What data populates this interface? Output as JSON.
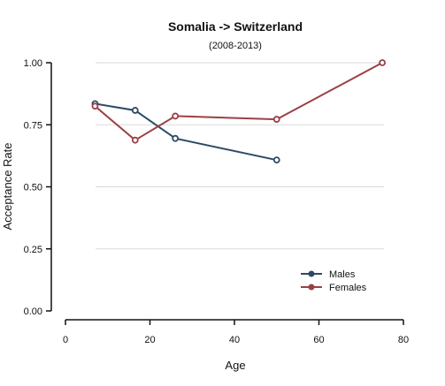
{
  "chart_data": {
    "type": "line",
    "title": "Somalia  -> Switzerland",
    "subtitle": "(2008-2013)",
    "xlabel": "Age",
    "ylabel": "Acceptance Rate",
    "xlim": [
      0,
      80
    ],
    "ylim": [
      0,
      1
    ],
    "x_ticks": [
      0,
      20,
      40,
      60,
      80
    ],
    "x_tick_labels": [
      "0",
      "20",
      "40",
      "60",
      "80"
    ],
    "y_ticks": [
      0,
      0.25,
      0.5,
      0.75,
      1
    ],
    "y_tick_labels": [
      "0.00",
      "0.25",
      "0.50",
      "0.75",
      "1.00"
    ],
    "grid": "horizontal",
    "legend_position": "bottom-right",
    "series": [
      {
        "name": "Males",
        "color": "#2e4a66",
        "points": [
          {
            "x": 7,
            "y": 0.835
          },
          {
            "x": 16.5,
            "y": 0.808
          },
          {
            "x": 26,
            "y": 0.695
          },
          {
            "x": 50,
            "y": 0.608
          }
        ]
      },
      {
        "name": "Females",
        "color": "#9b4045",
        "points": [
          {
            "x": 7,
            "y": 0.825
          },
          {
            "x": 16.5,
            "y": 0.688
          },
          {
            "x": 26,
            "y": 0.785
          },
          {
            "x": 50,
            "y": 0.772
          },
          {
            "x": 75,
            "y": 1.0
          }
        ]
      }
    ]
  }
}
